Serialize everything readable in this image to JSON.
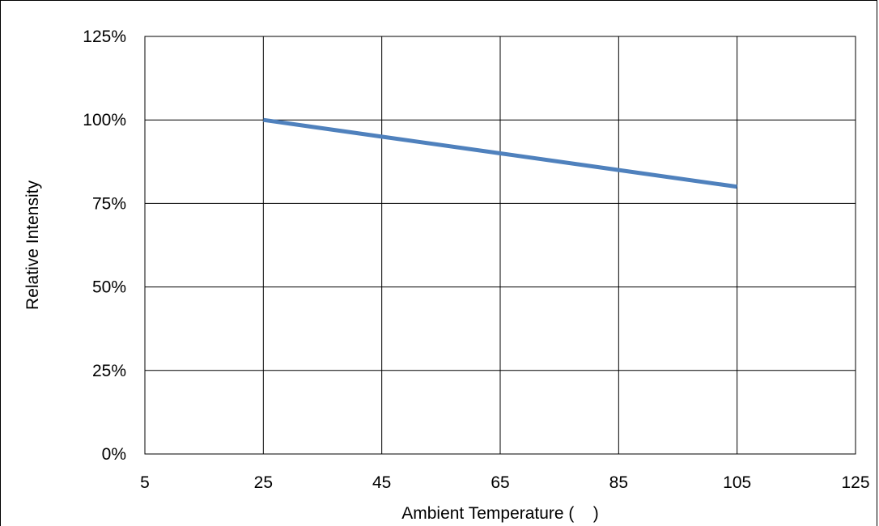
{
  "chart_data": {
    "type": "line",
    "title": "",
    "xlabel": "Ambient Temperature (    )",
    "ylabel": "Relative Intensity",
    "xlim": [
      5,
      125
    ],
    "ylim": [
      0,
      125
    ],
    "x_ticks": [
      5,
      25,
      45,
      65,
      85,
      105,
      125
    ],
    "y_ticks": [
      0,
      25,
      50,
      75,
      100,
      125
    ],
    "y_tick_labels": [
      "0%",
      "25%",
      "50%",
      "75%",
      "100%",
      "125%"
    ],
    "grid": true,
    "legend": "none",
    "series": [
      {
        "color": "#4F81BD",
        "x": [
          25,
          45,
          65,
          85,
          105
        ],
        "y": [
          100,
          95,
          90,
          85,
          80
        ]
      }
    ]
  }
}
